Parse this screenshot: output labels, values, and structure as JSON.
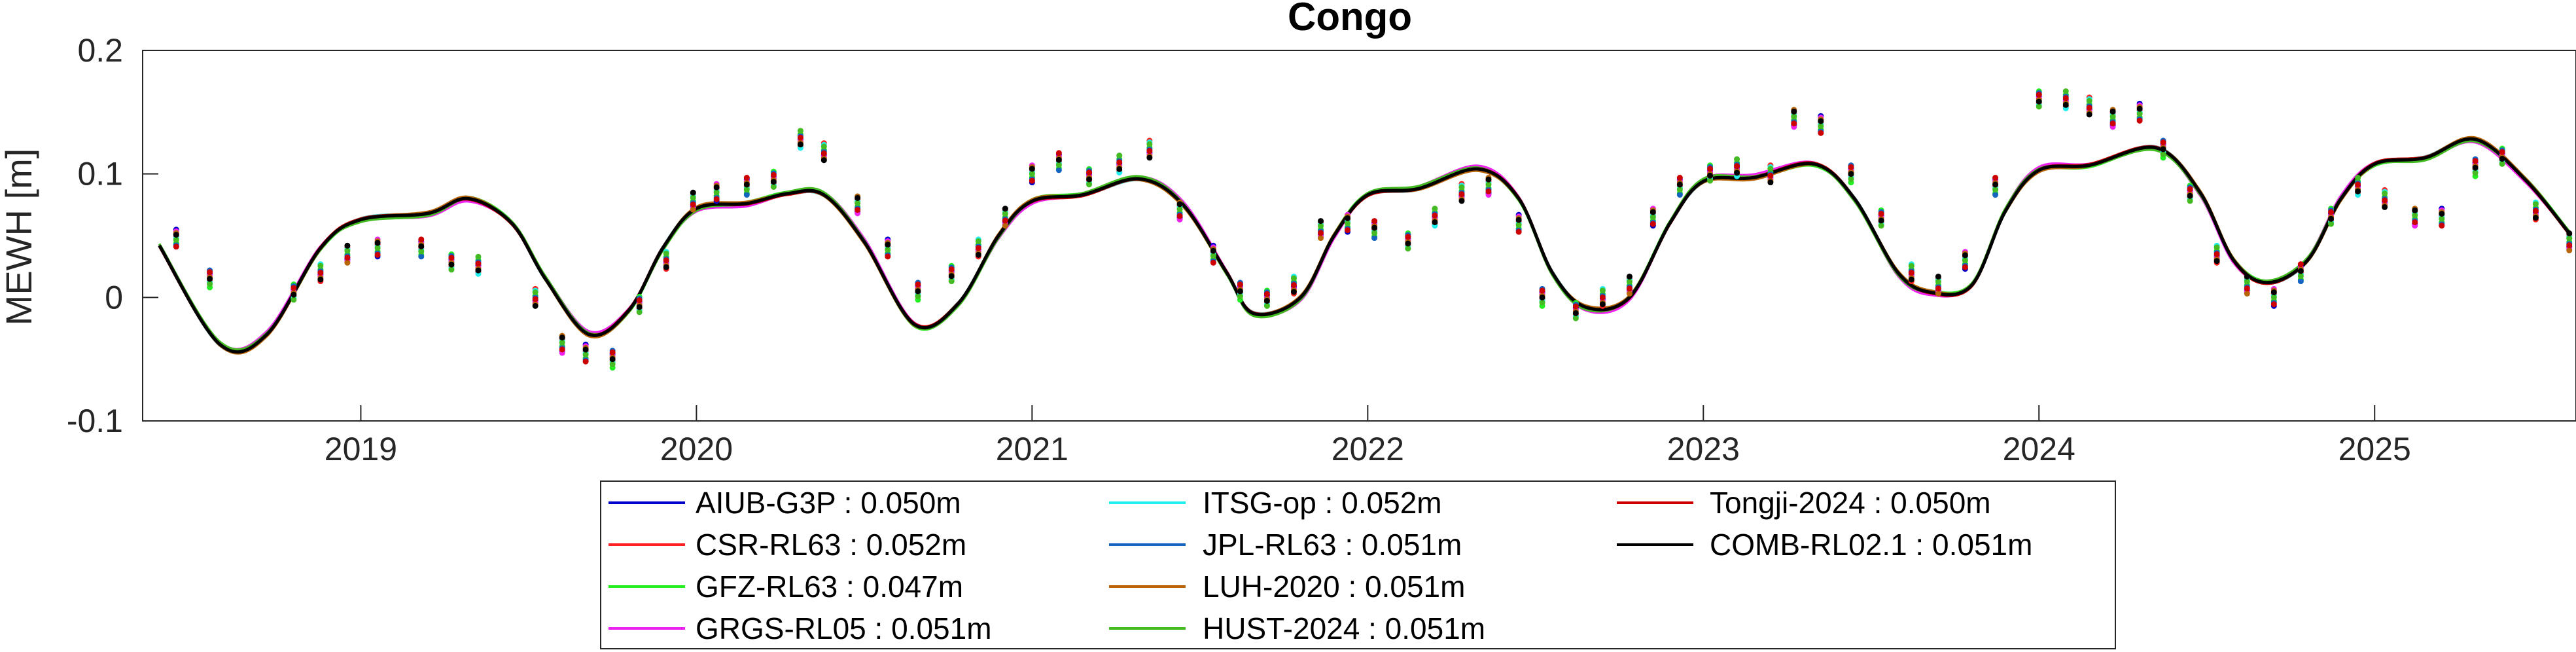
{
  "chart_data": {
    "type": "line",
    "title": "Congo",
    "ylabel": "MEWH [m]",
    "xlabel": "",
    "xlim": [
      2018.35,
      2025.6
    ],
    "ylim": [
      -0.1,
      0.2
    ],
    "yticks": [
      {
        "value": 0.2,
        "label": "0.2"
      },
      {
        "value": 0.1,
        "label": "0.1"
      },
      {
        "value": 0,
        "label": "0"
      },
      {
        "value": -0.1,
        "label": "-0.1"
      }
    ],
    "xticks": [
      {
        "value": 2019,
        "label": "2019"
      },
      {
        "value": 2020,
        "label": "2020"
      },
      {
        "value": 2021,
        "label": "2021"
      },
      {
        "value": 2022,
        "label": "2022"
      },
      {
        "value": 2023,
        "label": "2023"
      },
      {
        "value": 2024,
        "label": "2024"
      },
      {
        "value": 2025,
        "label": "2025"
      }
    ],
    "legend_position": "bottom (outside, below axis)",
    "series": [
      {
        "name": "AIUB-G3P",
        "rms": "0.050m",
        "color": "#0000cc"
      },
      {
        "name": "CSR-RL63",
        "rms": "0.052m",
        "color": "#ff2020"
      },
      {
        "name": "GFZ-RL63",
        "rms": "0.047m",
        "color": "#22ee22"
      },
      {
        "name": "GRGS-RL05",
        "rms": "0.051m",
        "color": "#ee22ee"
      },
      {
        "name": "ITSG-op",
        "rms": "0.052m",
        "color": "#22eeee"
      },
      {
        "name": "JPL-RL63",
        "rms": "0.051m",
        "color": "#1565c0"
      },
      {
        "name": "LUH-2020",
        "rms": "0.051m",
        "color": "#b8650a"
      },
      {
        "name": "HUST-2024",
        "rms": "0.051m",
        "color": "#44bb22"
      },
      {
        "name": "Tongji-2024",
        "rms": "0.050m",
        "color": "#cc0000"
      },
      {
        "name": "COMB-RL02.1",
        "rms": "0.051m",
        "color": "#000000"
      }
    ],
    "curve_control_points": [
      [
        2018.4,
        0.042
      ],
      [
        2018.58,
        -0.038
      ],
      [
        2018.72,
        -0.03
      ],
      [
        2018.88,
        0.04
      ],
      [
        2019.0,
        0.063
      ],
      [
        2019.2,
        0.068
      ],
      [
        2019.32,
        0.08
      ],
      [
        2019.45,
        0.06
      ],
      [
        2019.55,
        0.015
      ],
      [
        2019.68,
        -0.03
      ],
      [
        2019.8,
        -0.01
      ],
      [
        2019.9,
        0.04
      ],
      [
        2020.0,
        0.072
      ],
      [
        2020.15,
        0.076
      ],
      [
        2020.27,
        0.084
      ],
      [
        2020.38,
        0.083
      ],
      [
        2020.5,
        0.045
      ],
      [
        2020.65,
        -0.022
      ],
      [
        2020.78,
        -0.005
      ],
      [
        2020.9,
        0.05
      ],
      [
        2021.0,
        0.078
      ],
      [
        2021.15,
        0.083
      ],
      [
        2021.32,
        0.096
      ],
      [
        2021.45,
        0.075
      ],
      [
        2021.58,
        0.02
      ],
      [
        2021.66,
        -0.013
      ],
      [
        2021.8,
        0.0
      ],
      [
        2021.9,
        0.05
      ],
      [
        2022.0,
        0.083
      ],
      [
        2022.15,
        0.088
      ],
      [
        2022.33,
        0.104
      ],
      [
        2022.45,
        0.08
      ],
      [
        2022.55,
        0.02
      ],
      [
        2022.65,
        -0.008
      ],
      [
        2022.78,
        0.0
      ],
      [
        2022.9,
        0.06
      ],
      [
        2023.0,
        0.094
      ],
      [
        2023.15,
        0.097
      ],
      [
        2023.33,
        0.108
      ],
      [
        2023.45,
        0.08
      ],
      [
        2023.58,
        0.02
      ],
      [
        2023.68,
        0.004
      ],
      [
        2023.8,
        0.01
      ],
      [
        2023.9,
        0.07
      ],
      [
        2024.0,
        0.103
      ],
      [
        2024.15,
        0.107
      ],
      [
        2024.35,
        0.121
      ],
      [
        2024.48,
        0.085
      ],
      [
        2024.58,
        0.03
      ],
      [
        2024.68,
        0.012
      ],
      [
        2024.8,
        0.03
      ],
      [
        2024.9,
        0.08
      ],
      [
        2025.0,
        0.108
      ],
      [
        2025.15,
        0.113
      ],
      [
        2025.3,
        0.128
      ],
      [
        2025.45,
        0.095
      ],
      [
        2025.58,
        0.052
      ]
    ],
    "monthly_solutions": [
      [
        2018.45,
        0.048
      ],
      [
        2018.55,
        0.015
      ],
      [
        2018.8,
        0.005
      ],
      [
        2018.88,
        0.02
      ],
      [
        2018.96,
        0.035
      ],
      [
        2019.05,
        0.04
      ],
      [
        2019.18,
        0.04
      ],
      [
        2019.27,
        0.028
      ],
      [
        2019.35,
        0.026
      ],
      [
        2019.52,
        0.0
      ],
      [
        2019.6,
        -0.038
      ],
      [
        2019.67,
        -0.045
      ],
      [
        2019.75,
        -0.05
      ],
      [
        2019.83,
        -0.005
      ],
      [
        2019.91,
        0.03
      ],
      [
        2019.99,
        0.078
      ],
      [
        2020.06,
        0.085
      ],
      [
        2020.15,
        0.09
      ],
      [
        2020.23,
        0.095
      ],
      [
        2020.31,
        0.128
      ],
      [
        2020.38,
        0.118
      ],
      [
        2020.48,
        0.075
      ],
      [
        2020.57,
        0.04
      ],
      [
        2020.66,
        0.005
      ],
      [
        2020.76,
        0.02
      ],
      [
        2020.84,
        0.04
      ],
      [
        2020.92,
        0.065
      ],
      [
        2021.0,
        0.1
      ],
      [
        2021.08,
        0.11
      ],
      [
        2021.17,
        0.097
      ],
      [
        2021.26,
        0.108
      ],
      [
        2021.35,
        0.12
      ],
      [
        2021.44,
        0.07
      ],
      [
        2021.54,
        0.035
      ],
      [
        2021.62,
        0.005
      ],
      [
        2021.7,
        0.0
      ],
      [
        2021.78,
        0.01
      ],
      [
        2021.86,
        0.055
      ],
      [
        2021.94,
        0.06
      ],
      [
        2022.02,
        0.055
      ],
      [
        2022.12,
        0.045
      ],
      [
        2022.2,
        0.065
      ],
      [
        2022.28,
        0.085
      ],
      [
        2022.36,
        0.09
      ],
      [
        2022.45,
        0.06
      ],
      [
        2022.52,
        0.0
      ],
      [
        2022.62,
        -0.01
      ],
      [
        2022.7,
        0.0
      ],
      [
        2022.78,
        0.01
      ],
      [
        2022.85,
        0.065
      ],
      [
        2022.93,
        0.09
      ],
      [
        2023.02,
        0.1
      ],
      [
        2023.1,
        0.105
      ],
      [
        2023.2,
        0.1
      ],
      [
        2023.27,
        0.145
      ],
      [
        2023.35,
        0.14
      ],
      [
        2023.44,
        0.1
      ],
      [
        2023.53,
        0.065
      ],
      [
        2023.62,
        0.02
      ],
      [
        2023.7,
        0.01
      ],
      [
        2023.78,
        0.03
      ],
      [
        2023.87,
        0.09
      ],
      [
        2024.0,
        0.16
      ],
      [
        2024.08,
        0.16
      ],
      [
        2024.15,
        0.155
      ],
      [
        2024.22,
        0.145
      ],
      [
        2024.3,
        0.15
      ],
      [
        2024.37,
        0.12
      ],
      [
        2024.45,
        0.085
      ],
      [
        2024.53,
        0.035
      ],
      [
        2024.62,
        0.01
      ],
      [
        2024.7,
        0.0
      ],
      [
        2024.78,
        0.02
      ],
      [
        2024.87,
        0.065
      ],
      [
        2024.95,
        0.09
      ],
      [
        2025.03,
        0.08
      ],
      [
        2025.12,
        0.065
      ],
      [
        2025.2,
        0.065
      ],
      [
        2025.3,
        0.105
      ],
      [
        2025.38,
        0.115
      ],
      [
        2025.48,
        0.07
      ],
      [
        2025.58,
        0.045
      ]
    ]
  }
}
